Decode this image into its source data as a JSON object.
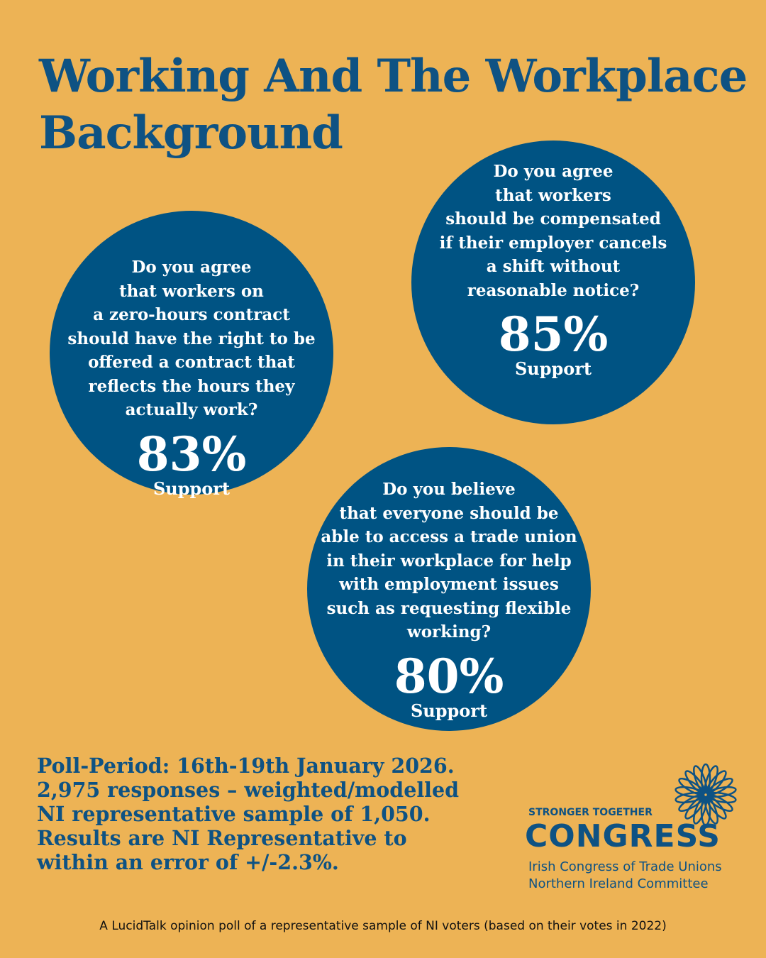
{
  "header": {
    "title": [
      "Working And The Workplace",
      "Background"
    ]
  },
  "circles": [
    {
      "question": [
        "Do you agree",
        "that workers on",
        "a zero-hours contract",
        "should have the right to be",
        "offered a contract that",
        "reflects the hours they",
        "actually work?"
      ],
      "result": "83%",
      "label": "Support"
    },
    {
      "question": [
        "Do you agree",
        "that workers",
        "should be compensated",
        "if their employer cancels",
        "a shift without",
        "reasonable notice?"
      ],
      "result": "85%",
      "label": "Support"
    },
    {
      "question": [
        "Do you believe",
        "that everyone should be",
        "able to access a trade union",
        "in their workplace for help",
        "with employment issues",
        "such as requesting flexible",
        "working?"
      ],
      "result": "80%",
      "label": "Support"
    }
  ],
  "poll": [
    "Poll-Period: 16th-19th January 2026.",
    "2,975 responses – weighted/modelled",
    "NI representative sample of 1,050.",
    "Results are NI Representative to",
    "within an error of +/-2.3%."
  ],
  "logo": {
    "tagline": "STRONGER TOGETHER",
    "name": "CONGRESS",
    "line1": "Irish Congress of Trade Unions",
    "line2": "Northern Ireland Committee"
  },
  "footer": "A LucidTalk opinion poll of a representative sample of NI voters (based on their votes in 2022)"
}
